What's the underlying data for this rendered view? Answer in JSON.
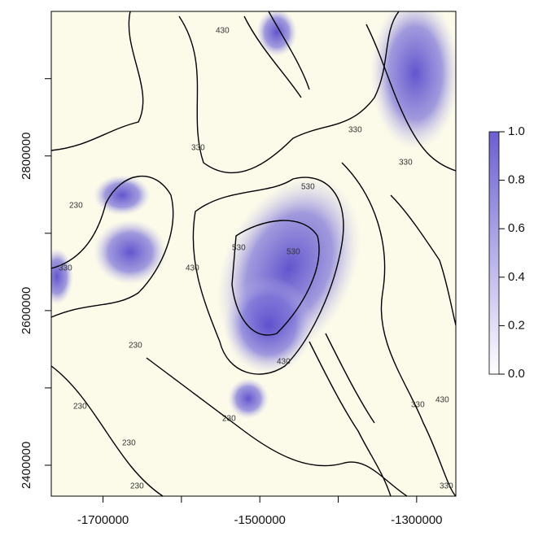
{
  "chart_data": {
    "type": "contour",
    "xlim": [
      -1766000,
      -1250000
    ],
    "ylim": [
      2360000,
      2987000
    ],
    "xticks": [
      -1700000,
      -1500000,
      -1300000
    ],
    "xminor": [
      -1600000,
      -1400000
    ],
    "yticks": [
      2400000,
      2600000,
      2800000
    ],
    "yminor": [
      2500000,
      2700000,
      2900000
    ],
    "contour_levels": [
      230,
      330,
      430,
      530
    ],
    "background": "#fcfbe9",
    "colorbar": {
      "lim": [
        0,
        1
      ],
      "colors": [
        "#ffffff",
        "#6b5fd2"
      ],
      "ticks": [
        {
          "value": 0,
          "label": "0.0"
        },
        0.2,
        0.4,
        0.6,
        0.8,
        {
          "value": 1,
          "label": "1.0"
        }
      ]
    }
  }
}
